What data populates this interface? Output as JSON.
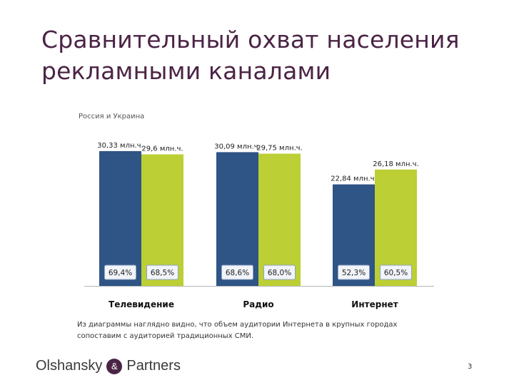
{
  "title": {
    "line1": "Сравнительный охват населения",
    "line2": "рекламными каналами"
  },
  "subtitle": "Россия и Украина",
  "note": {
    "line1": "Из диаграммы наглядно видно, что объем аудитории Интернета в крупных городах",
    "line2": "сопоставим с аудиторией традиционных СМИ."
  },
  "footer": {
    "logo_left": "Olshansky",
    "logo_amp": "&",
    "logo_right": "Partners",
    "page_number": "3"
  },
  "colors": {
    "russia": "#2f5486",
    "ukraine": "#bccf34",
    "title": "#4b2445"
  },
  "chart_data": {
    "type": "bar",
    "categories": [
      "Телевидение",
      "Радио",
      "Интернет"
    ],
    "series": [
      {
        "values": [
          30.33,
          30.09,
          22.84
        ],
        "value_labels": [
          "30,33 млн.ч.",
          "30,09 млн.ч.",
          "22,84 млн.ч."
        ],
        "share_labels": [
          "69,4%",
          "68,6%",
          "52,3%"
        ],
        "color": "#2f5486"
      },
      {
        "values": [
          29.6,
          29.75,
          26.18
        ],
        "value_labels": [
          "29,6 млн.ч.",
          "29,75 млн.ч.",
          "26,18 млн.ч."
        ],
        "share_labels": [
          "68,5%",
          "68,0%",
          "60,5%"
        ],
        "color": "#bccf34"
      }
    ],
    "ylim": [
      0,
      31
    ],
    "grid": false,
    "legend": "none"
  }
}
